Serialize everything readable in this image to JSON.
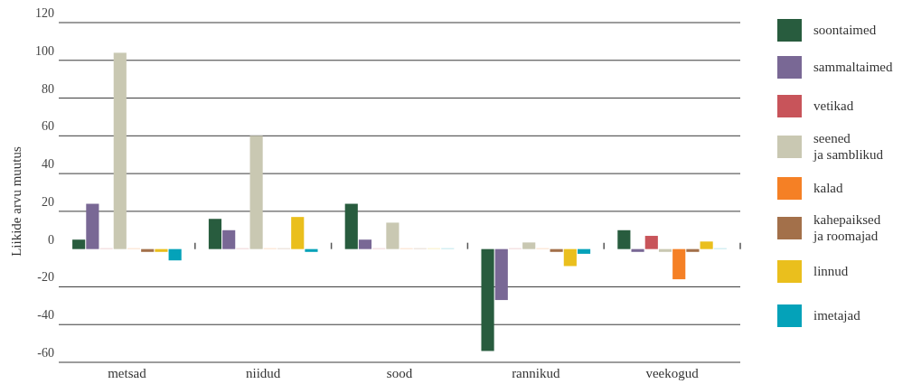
{
  "chart_data": {
    "type": "bar",
    "ylabel": "Liikide arvu muutus",
    "categories": [
      "metsad",
      "niidud",
      "sood",
      "rannikud",
      "veekogud"
    ],
    "series": [
      {
        "name": "soontaimed",
        "color": "#285c3e",
        "values": [
          5,
          16,
          24,
          -54,
          10
        ]
      },
      {
        "name": "sammaltaimed",
        "color": "#796895",
        "values": [
          24,
          10,
          5,
          -27,
          -1.5
        ]
      },
      {
        "name": "vetikad",
        "color": "#c8545a",
        "values": [
          0,
          0,
          0,
          0,
          7
        ]
      },
      {
        "name": "seened\nja samblikud",
        "color": "#c9c8b2",
        "values": [
          104,
          60,
          14,
          3.5,
          -1.5
        ]
      },
      {
        "name": "kalad",
        "color": "#f58025",
        "values": [
          0,
          0,
          0,
          0,
          -16
        ]
      },
      {
        "name": "kahepaiksed\nja roomajad",
        "color": "#a3704a",
        "values": [
          -1.5,
          0,
          0,
          -1.5,
          -1.5
        ]
      },
      {
        "name": "linnud",
        "color": "#eabf1d",
        "values": [
          -1.5,
          17,
          0,
          -9,
          4
        ]
      },
      {
        "name": "imetajad",
        "color": "#04a2b9",
        "values": [
          -6,
          -1.5,
          0,
          -2.5,
          0
        ]
      }
    ],
    "ylim": [
      -60,
      120
    ],
    "yticks": [
      -60,
      -40,
      -20,
      0,
      20,
      40,
      60,
      80,
      100,
      120
    ],
    "grid": "y",
    "legend": "right"
  }
}
